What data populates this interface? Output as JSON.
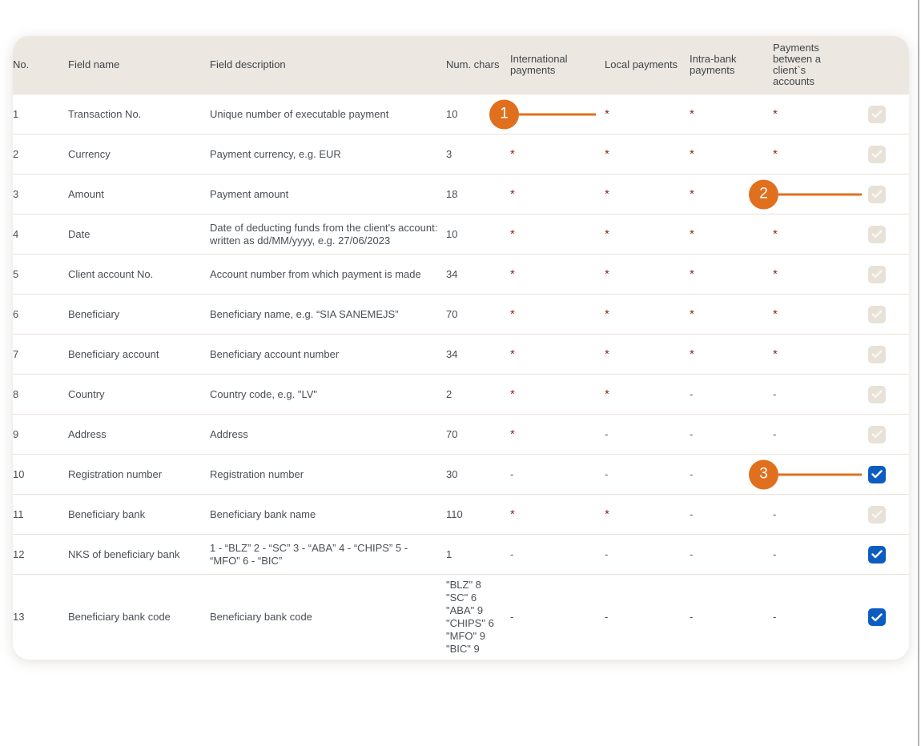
{
  "colors": {
    "accent_orange": "#e0701e",
    "checkbox_blue": "#0d5cc1",
    "checkbox_disabled_bg": "#e7e1d8",
    "asterisk_red": "#8b2823",
    "header_bg": "#ece8e1",
    "row_separator": "#ece0da"
  },
  "table": {
    "columns": [
      {
        "key": "no",
        "label": "No."
      },
      {
        "key": "name",
        "label": "Field name"
      },
      {
        "key": "description",
        "label": "Field description"
      },
      {
        "key": "chars",
        "label": "Num. chars"
      },
      {
        "key": "intl",
        "label": "International payments"
      },
      {
        "key": "local",
        "label": "Local payments"
      },
      {
        "key": "intra",
        "label": "Intra-bank payments"
      },
      {
        "key": "between",
        "label": "Payments between a client`s accounts"
      },
      {
        "key": "checkbox",
        "label": ""
      }
    ],
    "rows": [
      {
        "no": "1",
        "name": "Transaction No.",
        "description": "Unique number of executable payment",
        "chars": "10",
        "intl": "*",
        "local": "*",
        "intra": "*",
        "between": "*",
        "checkbox": {
          "checked": true,
          "enabled": false
        },
        "badge": {
          "number": "1",
          "column": "intl"
        }
      },
      {
        "no": "2",
        "name": "Currency",
        "description": "Payment currency, e.g. EUR",
        "chars": "3",
        "intl": "*",
        "local": "*",
        "intra": "*",
        "between": "*",
        "checkbox": {
          "checked": true,
          "enabled": false
        }
      },
      {
        "no": "3",
        "name": "Amount",
        "description": "Payment amount",
        "chars": "18",
        "intl": "*",
        "local": "*",
        "intra": "*",
        "between": "*",
        "checkbox": {
          "checked": true,
          "enabled": false
        },
        "badge": {
          "number": "2",
          "column": "between"
        }
      },
      {
        "no": "4",
        "name": "Date",
        "description": "Date of deducting funds from the client's account: written as dd/MM/yyyy, e.g. 27/06/2023",
        "chars": "10",
        "intl": "*",
        "local": "*",
        "intra": "*",
        "between": "*",
        "checkbox": {
          "checked": true,
          "enabled": false
        }
      },
      {
        "no": "5",
        "name": "Client account No.",
        "description": "Account number from which payment is made",
        "chars": "34",
        "intl": "*",
        "local": "*",
        "intra": "*",
        "between": "*",
        "checkbox": {
          "checked": true,
          "enabled": false
        }
      },
      {
        "no": "6",
        "name": "Beneficiary",
        "description": "Beneficiary name, e.g. “SIA SANEMEJS”",
        "chars": "70",
        "intl": "*",
        "local": "*",
        "intra": "*",
        "between": "*",
        "checkbox": {
          "checked": true,
          "enabled": false
        }
      },
      {
        "no": "7",
        "name": "Beneficiary account",
        "description": "Beneficiary account number",
        "chars": "34",
        "intl": "*",
        "local": "*",
        "intra": "*",
        "between": "*",
        "checkbox": {
          "checked": true,
          "enabled": false
        }
      },
      {
        "no": "8",
        "name": "Country",
        "description": "Country code, e.g. \"LV\"",
        "chars": "2",
        "intl": "*",
        "local": "*",
        "intra": "-",
        "between": "-",
        "checkbox": {
          "checked": true,
          "enabled": false
        }
      },
      {
        "no": "9",
        "name": "Address",
        "description": "Address",
        "chars": "70",
        "intl": "*",
        "local": "-",
        "intra": "-",
        "between": "-",
        "checkbox": {
          "checked": true,
          "enabled": false
        }
      },
      {
        "no": "10",
        "name": "Registration number",
        "description": "Registration number",
        "chars": "30",
        "intl": "-",
        "local": "-",
        "intra": "-",
        "between": "-",
        "checkbox": {
          "checked": true,
          "enabled": true
        },
        "badge": {
          "number": "3",
          "column": "between"
        }
      },
      {
        "no": "11",
        "name": "Beneficiary bank",
        "description": "Beneficiary bank name",
        "chars": "110",
        "intl": "*",
        "local": "*",
        "intra": "-",
        "between": "-",
        "checkbox": {
          "checked": true,
          "enabled": false
        }
      },
      {
        "no": "12",
        "name": "NKS of beneficiary bank",
        "description": "1 - “BLZ” 2 - “SC” 3 - “ABA” 4 - “CHIPS” 5 - “MFO” 6 - “BIC”",
        "chars": "1",
        "intl": "-",
        "local": "-",
        "intra": "-",
        "between": "-",
        "checkbox": {
          "checked": true,
          "enabled": true
        }
      },
      {
        "no": "13",
        "name": "Beneficiary bank code",
        "description": "Beneficiary bank code",
        "chars": "\"BLZ\" 8\n\"SC\" 6\n\"ABA\" 9\n\"CHIPS\" 6\n\"MFO\" 9\n\"BIC\" 9",
        "intl": "-",
        "local": "-",
        "intra": "-",
        "between": "-",
        "checkbox": {
          "checked": true,
          "enabled": true
        }
      }
    ]
  }
}
